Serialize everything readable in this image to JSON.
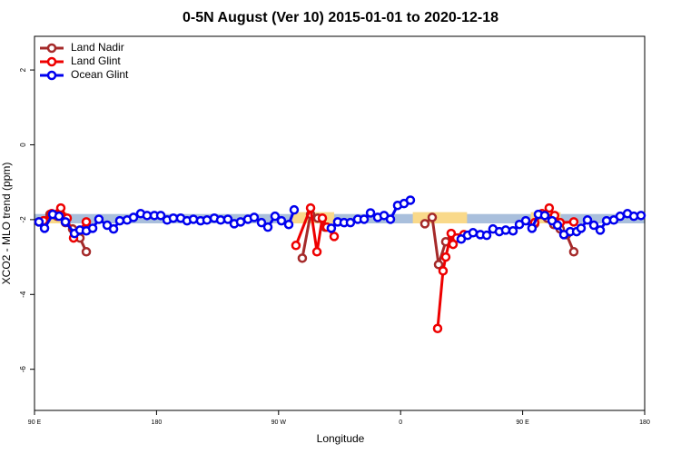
{
  "chart_data": {
    "type": "line",
    "title": "0-5N August (Ver 10)   2015-01-01 to 2020-12-18",
    "xlabel": "Longitude",
    "ylabel": "XCO2 - MLO trend (ppm)",
    "xlim": [
      90,
      540
    ],
    "ylim": [
      -7.1,
      2.9
    ],
    "xticks": [
      {
        "value": 90,
        "label": "90 E"
      },
      180,
      {
        "value": 270,
        "label": "90 W"
      },
      {
        "value": 360,
        "label": "0"
      },
      {
        "value": 450,
        "label": "90 E"
      },
      {
        "value": 540,
        "label": "180"
      }
    ],
    "yticks": [
      -6,
      -4,
      -2,
      0,
      2
    ],
    "legend": "top-left",
    "shading": [
      {
        "color": "#a9bfdc",
        "x": [
          90,
          540
        ],
        "y": [
          -1.85,
          -2.1
        ]
      },
      {
        "color": "#f9d98a",
        "x": [
          98,
          114
        ],
        "y": [
          -1.8,
          -2.1
        ]
      },
      {
        "color": "#f9d98a",
        "x": [
          280,
          311
        ],
        "y": [
          -1.8,
          -2.1
        ]
      },
      {
        "color": "#f9d98a",
        "x": [
          369,
          409
        ],
        "y": [
          -1.8,
          -2.1
        ]
      },
      {
        "color": "#f9d98a",
        "x": [
          456,
          478
        ],
        "y": [
          -1.8,
          -2.1
        ]
      }
    ],
    "series": [
      {
        "name": "Land Nadir",
        "color": "#a52a2a",
        "x": [
          93.3,
          101.4,
          106.7,
          112.8,
          118.1,
          123.5,
          128.2,
          null,
          287.5,
          293.6,
          298.9,
          304.3,
          null,
          377.9,
          383.3,
          388.0,
          393.3,
          398.0,
          402.7,
          null,
          458.9,
          463.6,
          468.3,
          473.0,
          477.7,
          482.4,
          487.7
        ],
        "values": [
          -2.06,
          -1.86,
          -1.91,
          -2.08,
          -2.25,
          -2.49,
          -2.86,
          null,
          -3.03,
          -1.86,
          -1.96,
          -2.2,
          null,
          -2.11,
          -1.94,
          -3.2,
          -2.59,
          -2.49,
          -2.49,
          null,
          -2.11,
          -1.86,
          -1.96,
          -2.13,
          -2.25,
          -2.4,
          -2.86
        ]
      },
      {
        "name": "Land Glint",
        "color": "#ee0000",
        "x": [
          96.7,
          102.7,
          109.4,
          114.1,
          118.8,
          128.2,
          null,
          282.8,
          293.6,
          298.3,
          302.3,
          305.6,
          311.0,
          null,
          387.3,
          391.3,
          393.3,
          397.3,
          398.7,
          401.4,
          406.7,
          null,
          458.9,
          464.3,
          469.6,
          473.6,
          477.7,
          487.7
        ],
        "values": [
          -2.03,
          -1.84,
          -1.69,
          -1.96,
          -2.49,
          -2.06,
          null,
          -2.69,
          -1.69,
          -2.86,
          -1.96,
          -2.2,
          -2.45,
          null,
          -4.91,
          -3.37,
          -3.0,
          -2.37,
          -2.66,
          -2.49,
          -2.4,
          null,
          -2.08,
          -1.84,
          -1.69,
          -1.89,
          -2.08,
          -2.06
        ]
      },
      {
        "name": "Ocean Glint",
        "color": "#0000ee",
        "x": [
          93.3,
          97.4,
          103.4,
          108.1,
          112.8,
          119.5,
          123.5,
          128.2,
          132.9,
          137.5,
          143.6,
          148.3,
          152.9,
          158.3,
          163.0,
          168.3,
          173.0,
          178.4,
          183.1,
          187.8,
          192.4,
          197.8,
          202.5,
          207.2,
          212.5,
          217.2,
          222.6,
          227.3,
          232.6,
          237.3,
          242.0,
          247.4,
          252.0,
          257.4,
          262.1,
          267.4,
          272.1,
          277.5,
          281.5,
          null,
          308.9,
          313.6,
          318.3,
          323.0,
          328.4,
          333.1,
          337.8,
          343.1,
          347.8,
          352.5,
          357.8,
          362.5,
          367.2,
          null,
          404.7,
          409.4,
          413.4,
          418.8,
          423.5,
          428.1,
          432.8,
          437.5,
          442.9,
          447.6,
          452.3,
          456.9,
          461.6,
          466.3,
          471.7,
          475.7,
          480.4,
          485.1,
          489.8,
          493.1,
          497.8,
          502.5,
          507.2,
          511.9,
          517.2,
          521.9,
          527.3,
          532.0,
          537.3
        ],
        "values": [
          -2.06,
          -2.23,
          -1.86,
          -1.91,
          -2.06,
          -2.37,
          -2.28,
          -2.3,
          -2.23,
          -1.99,
          -2.15,
          -2.25,
          -2.03,
          -2.01,
          -1.94,
          -1.84,
          -1.89,
          -1.89,
          -1.89,
          -2.01,
          -1.96,
          -1.96,
          -2.03,
          -1.99,
          -2.03,
          -2.01,
          -1.96,
          -2.01,
          -1.99,
          -2.11,
          -2.06,
          -1.99,
          -1.94,
          -2.08,
          -2.2,
          -1.91,
          -2.03,
          -2.13,
          -1.74,
          null,
          -2.23,
          -2.06,
          -2.08,
          -2.08,
          -1.99,
          -1.99,
          -1.82,
          -1.94,
          -1.89,
          -1.99,
          -1.62,
          -1.57,
          -1.48,
          null,
          -2.52,
          -2.42,
          -2.35,
          -2.4,
          -2.42,
          -2.25,
          -2.32,
          -2.28,
          -2.3,
          -2.13,
          -2.03,
          -2.23,
          -1.86,
          -1.89,
          -2.03,
          -2.15,
          -2.4,
          -2.32,
          -2.32,
          -2.23,
          -2.01,
          -2.15,
          -2.28,
          -2.03,
          -2.01,
          -1.91,
          -1.84,
          -1.91,
          -1.89
        ]
      }
    ]
  }
}
